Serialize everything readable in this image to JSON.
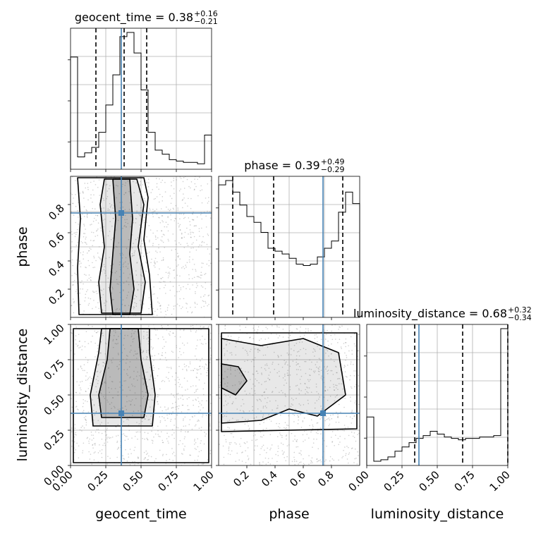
{
  "chart_data": {
    "type": "corner",
    "parameters": [
      "geocent_time",
      "phase",
      "luminosity_distance"
    ],
    "truths": [
      0.36,
      0.74,
      0.37
    ],
    "truth_color": "#4682b4",
    "axis_ranges": [
      [
        0,
        1
      ],
      [
        0,
        1
      ],
      [
        0,
        1
      ]
    ],
    "grid": true,
    "axis_labels": [
      "geocent_time",
      "phase",
      "luminosity_distance"
    ],
    "ylabels_left": [
      "phase",
      "luminosity_distance"
    ],
    "ticks": {
      "geocent_time": [
        "0.00",
        "0.25",
        "0.50",
        "0.75",
        "1.00"
      ],
      "phase": [
        "0.2",
        "0.4",
        "0.6",
        "0.8"
      ],
      "luminosity_distance": [
        "0.00",
        "0.25",
        "0.50",
        "0.75",
        "1.00"
      ]
    },
    "titles": [
      {
        "param": "geocent_time",
        "text": "geocent_time = 0.38",
        "sup": "+0.16",
        "sub": "−0.21"
      },
      {
        "param": "phase",
        "text": "phase = 0.39",
        "sup": "+0.49",
        "sub": "−0.29"
      },
      {
        "param": "luminosity_distance",
        "text": "luminosity_distance = 0.68",
        "sup": "+0.32",
        "sub": "−0.34"
      }
    ],
    "quantiles": {
      "geocent_time": [
        0.18,
        0.38,
        0.54
      ],
      "phase": [
        0.1,
        0.39,
        0.88
      ],
      "luminosity_distance": [
        0.34,
        0.68,
        1.0
      ]
    },
    "histograms": {
      "geocent_time": {
        "bin_edges": [
          0.0,
          0.05,
          0.1,
          0.15,
          0.2,
          0.25,
          0.3,
          0.35,
          0.4,
          0.45,
          0.5,
          0.55,
          0.6,
          0.65,
          0.7,
          0.75,
          0.8,
          0.85,
          0.9,
          0.95,
          1.0
        ],
        "heights": [
          0.82,
          0.09,
          0.12,
          0.16,
          0.27,
          0.47,
          0.69,
          0.97,
          1.0,
          0.85,
          0.58,
          0.27,
          0.14,
          0.11,
          0.07,
          0.06,
          0.05,
          0.05,
          0.04,
          0.25
        ]
      },
      "phase": {
        "bin_edges": [
          0.0,
          0.05,
          0.1,
          0.15,
          0.2,
          0.25,
          0.3,
          0.35,
          0.4,
          0.45,
          0.5,
          0.55,
          0.6,
          0.65,
          0.7,
          0.75,
          0.8,
          0.85,
          0.9,
          0.95,
          1.0
        ],
        "heights": [
          0.92,
          0.95,
          0.87,
          0.78,
          0.7,
          0.66,
          0.59,
          0.48,
          0.46,
          0.44,
          0.41,
          0.37,
          0.36,
          0.37,
          0.42,
          0.48,
          0.53,
          0.73,
          0.87,
          0.79
        ]
      },
      "luminosity_distance": {
        "bin_edges": [
          0.0,
          0.05,
          0.1,
          0.15,
          0.2,
          0.25,
          0.3,
          0.35,
          0.4,
          0.45,
          0.5,
          0.55,
          0.6,
          0.65,
          0.7,
          0.75,
          0.8,
          0.85,
          0.9,
          0.95,
          1.0
        ],
        "heights": [
          0.34,
          0.03,
          0.04,
          0.06,
          0.1,
          0.13,
          0.16,
          0.19,
          0.21,
          0.24,
          0.22,
          0.2,
          0.19,
          0.18,
          0.19,
          0.19,
          0.2,
          0.2,
          0.21,
          0.96
        ]
      }
    },
    "density_2d": [
      {
        "x": "geocent_time",
        "y": "phase",
        "contours": [
          [
            [
              0.3,
              0.02
            ],
            [
              0.42,
              0.02
            ],
            [
              0.45,
              0.2
            ],
            [
              0.42,
              0.45
            ],
            [
              0.44,
              0.7
            ],
            [
              0.42,
              0.98
            ],
            [
              0.3,
              0.98
            ],
            [
              0.32,
              0.7
            ],
            [
              0.3,
              0.45
            ],
            [
              0.28,
              0.2
            ]
          ],
          [
            [
              0.22,
              0.03
            ],
            [
              0.5,
              0.03
            ],
            [
              0.53,
              0.25
            ],
            [
              0.48,
              0.5
            ],
            [
              0.52,
              0.8
            ],
            [
              0.47,
              0.98
            ],
            [
              0.24,
              0.98
            ],
            [
              0.21,
              0.8
            ],
            [
              0.24,
              0.5
            ],
            [
              0.2,
              0.25
            ]
          ],
          [
            [
              0.06,
              0.02
            ],
            [
              0.58,
              0.02
            ],
            [
              0.56,
              0.3
            ],
            [
              0.52,
              0.55
            ],
            [
              0.55,
              0.85
            ],
            [
              0.52,
              0.99
            ],
            [
              0.05,
              0.99
            ],
            [
              0.07,
              0.7
            ],
            [
              0.05,
              0.35
            ]
          ]
        ]
      },
      {
        "x": "geocent_time",
        "y": "luminosity_distance",
        "contours": [
          [
            [
              0.22,
              0.34
            ],
            [
              0.52,
              0.34
            ],
            [
              0.55,
              0.5
            ],
            [
              0.5,
              0.75
            ],
            [
              0.48,
              0.97
            ],
            [
              0.28,
              0.97
            ],
            [
              0.26,
              0.75
            ],
            [
              0.2,
              0.5
            ]
          ],
          [
            [
              0.16,
              0.28
            ],
            [
              0.58,
              0.28
            ],
            [
              0.6,
              0.5
            ],
            [
              0.56,
              0.8
            ],
            [
              0.56,
              0.97
            ],
            [
              0.22,
              0.97
            ],
            [
              0.2,
              0.8
            ],
            [
              0.14,
              0.5
            ]
          ],
          [
            [
              0.02,
              0.02
            ],
            [
              0.98,
              0.02
            ],
            [
              0.98,
              0.97
            ],
            [
              0.02,
              0.97
            ]
          ]
        ]
      },
      {
        "x": "phase",
        "y": "luminosity_distance",
        "contours": [
          [
            [
              0.02,
              0.55
            ],
            [
              0.12,
              0.5
            ],
            [
              0.2,
              0.6
            ],
            [
              0.14,
              0.7
            ],
            [
              0.02,
              0.72
            ]
          ],
          [
            [
              0.02,
              0.3
            ],
            [
              0.3,
              0.32
            ],
            [
              0.5,
              0.4
            ],
            [
              0.7,
              0.35
            ],
            [
              0.9,
              0.5
            ],
            [
              0.85,
              0.8
            ],
            [
              0.6,
              0.9
            ],
            [
              0.3,
              0.85
            ],
            [
              0.02,
              0.9
            ]
          ],
          [
            [
              0.02,
              0.24
            ],
            [
              0.98,
              0.26
            ],
            [
              0.98,
              0.94
            ],
            [
              0.02,
              0.94
            ]
          ]
        ]
      }
    ]
  }
}
